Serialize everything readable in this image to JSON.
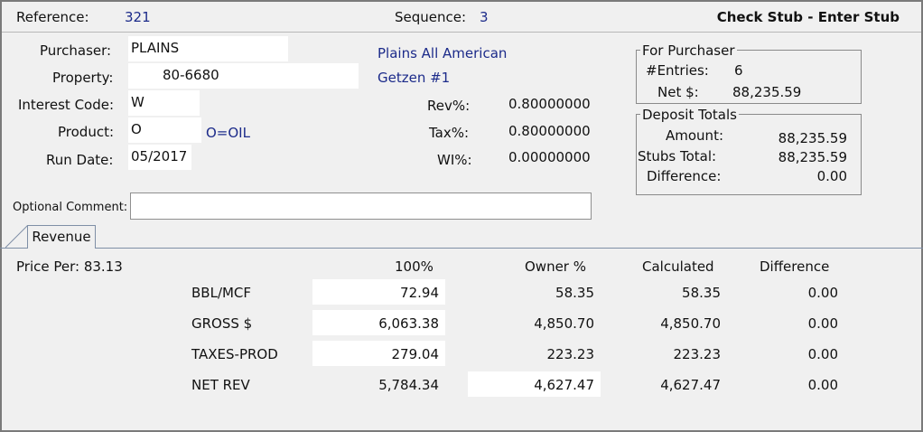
{
  "header": {
    "reference_label": "Reference:",
    "reference_value": "321",
    "sequence_label": "Sequence:",
    "sequence_value": "3",
    "title": "Check Stub - Enter Stub"
  },
  "form": {
    "purchaser_label": "Purchaser:",
    "purchaser_value": "PLAINS",
    "purchaser_name": "Plains All American",
    "property_label": "Property:",
    "property_value": "80-6680",
    "property_name": "Getzen #1",
    "interest_label": "Interest Code:",
    "interest_value": "W",
    "product_label": "Product:",
    "product_value": "O",
    "product_desc": "O=OIL",
    "rundate_label": "Run Date:",
    "rundate_value": "05/2017",
    "comment_label": "Optional Comment:",
    "comment_value": ""
  },
  "rates": {
    "rev_label": "Rev%:",
    "rev_value": "0.80000000",
    "tax_label": "Tax%:",
    "tax_value": "0.80000000",
    "wi_label": "WI%:",
    "wi_value": "0.00000000"
  },
  "for_purchaser": {
    "title": "For Purchaser",
    "entries_label": "#Entries:",
    "entries_value": "6",
    "net_label": "Net $:",
    "net_value": "88,235.59"
  },
  "deposit_totals": {
    "title": "Deposit Totals",
    "amount_label": "Amount:",
    "amount_value": "88,235.59",
    "stubs_label": "Stubs Total:",
    "stubs_value": "88,235.59",
    "diff_label": "Difference:",
    "diff_value": "0.00"
  },
  "tabs": {
    "revenue": "Revenue"
  },
  "revenue": {
    "price_per": "Price Per: 83.13",
    "columns": [
      "100%",
      "Owner %",
      "Calculated",
      "Difference"
    ],
    "rows": [
      {
        "label": "BBL/MCF",
        "full": "72.94",
        "owner": "58.35",
        "calc": "58.35",
        "diff": "0.00"
      },
      {
        "label": "GROSS $",
        "full": "6,063.38",
        "owner": "4,850.70",
        "calc": "4,850.70",
        "diff": "0.00"
      },
      {
        "label": "TAXES-PROD",
        "full": "279.04",
        "owner": "223.23",
        "calc": "223.23",
        "diff": "0.00"
      },
      {
        "label": "NET REV",
        "full": "5,784.34",
        "owner": "4,627.47",
        "calc": "4,627.47",
        "diff": "0.00"
      }
    ]
  }
}
